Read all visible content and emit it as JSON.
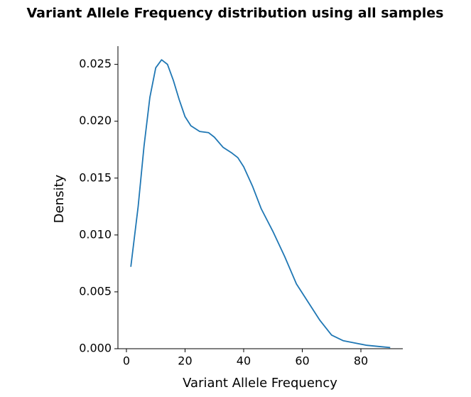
{
  "chart_data": {
    "type": "line",
    "title": "Variant Allele Frequency distribution using all samples",
    "x_label": "Variant Allele Frequency",
    "y_label": "Density",
    "x": [
      1.5,
      4,
      6,
      8,
      10,
      12,
      14,
      16,
      18,
      20,
      22,
      25,
      28,
      30,
      33,
      36,
      38,
      40,
      43,
      46,
      50,
      54,
      58,
      62,
      66,
      70,
      74,
      78,
      82,
      86,
      90
    ],
    "series": [
      {
        "name": "Density",
        "color": "#1f77b4",
        "values": [
          0.0072,
          0.0125,
          0.0178,
          0.0221,
          0.0247,
          0.0254,
          0.025,
          0.0236,
          0.0219,
          0.0204,
          0.0196,
          0.0191,
          0.019,
          0.0186,
          0.0177,
          0.0172,
          0.0168,
          0.016,
          0.0143,
          0.0123,
          0.0103,
          0.0081,
          0.0057,
          0.0041,
          0.0025,
          0.0012,
          0.0007,
          0.0005,
          0.0003,
          0.0002,
          0.0001
        ]
      }
    ],
    "xlim": [
      -2.9,
      94.3
    ],
    "ylim": [
      0,
      0.0266
    ],
    "xticks": [
      0,
      20,
      40,
      60,
      80
    ],
    "yticks": [
      {
        "value": 0,
        "label": "0.000"
      },
      {
        "value": 0.005,
        "label": "0.005"
      },
      {
        "value": 0.01,
        "label": "0.010"
      },
      {
        "value": 0.015,
        "label": "0.015"
      },
      {
        "value": 0.02,
        "label": "0.020"
      },
      {
        "value": 0.025,
        "label": "0.025"
      }
    ],
    "grid": false
  }
}
